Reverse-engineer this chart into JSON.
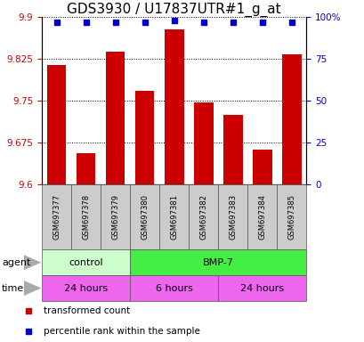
{
  "title": "GDS3930 / U17837UTR#1_g_at",
  "samples": [
    "GSM697377",
    "GSM697378",
    "GSM697379",
    "GSM697380",
    "GSM697381",
    "GSM697382",
    "GSM697383",
    "GSM697384",
    "GSM697385"
  ],
  "bar_values": [
    9.815,
    9.657,
    9.838,
    9.768,
    9.878,
    9.748,
    9.725,
    9.663,
    9.833
  ],
  "percentile_values": [
    97,
    97,
    97,
    97,
    98,
    97,
    97,
    97,
    97
  ],
  "ylim_left": [
    9.6,
    9.9
  ],
  "ylim_right": [
    0,
    100
  ],
  "yticks_left": [
    9.6,
    9.675,
    9.75,
    9.825,
    9.9
  ],
  "yticks_right": [
    0,
    25,
    50,
    75,
    100
  ],
  "bar_color": "#cc0000",
  "dot_color": "#0000cc",
  "bar_bottom": 9.6,
  "agent_groups": [
    {
      "label": "control",
      "start": 0,
      "end": 3,
      "color": "#ccffcc"
    },
    {
      "label": "BMP-7",
      "start": 3,
      "end": 9,
      "color": "#44ee44"
    }
  ],
  "time_groups": [
    {
      "label": "24 hours",
      "start": 0,
      "end": 3,
      "color": "#ee66ee"
    },
    {
      "label": "6 hours",
      "start": 3,
      "end": 6,
      "color": "#ee66ee"
    },
    {
      "label": "24 hours",
      "start": 6,
      "end": 9,
      "color": "#ee66ee"
    }
  ],
  "legend_items": [
    {
      "label": "transformed count",
      "color": "#cc0000"
    },
    {
      "label": "percentile rank within the sample",
      "color": "#0000cc"
    }
  ],
  "left_tick_color": "#cc0000",
  "right_tick_color": "#0000cc",
  "grid_color": "#000000",
  "sample_box_color": "#cccccc",
  "title_fontsize": 11,
  "tick_fontsize": 7.5,
  "label_fontsize": 8,
  "sample_fontsize": 6,
  "legend_fontsize": 7.5
}
